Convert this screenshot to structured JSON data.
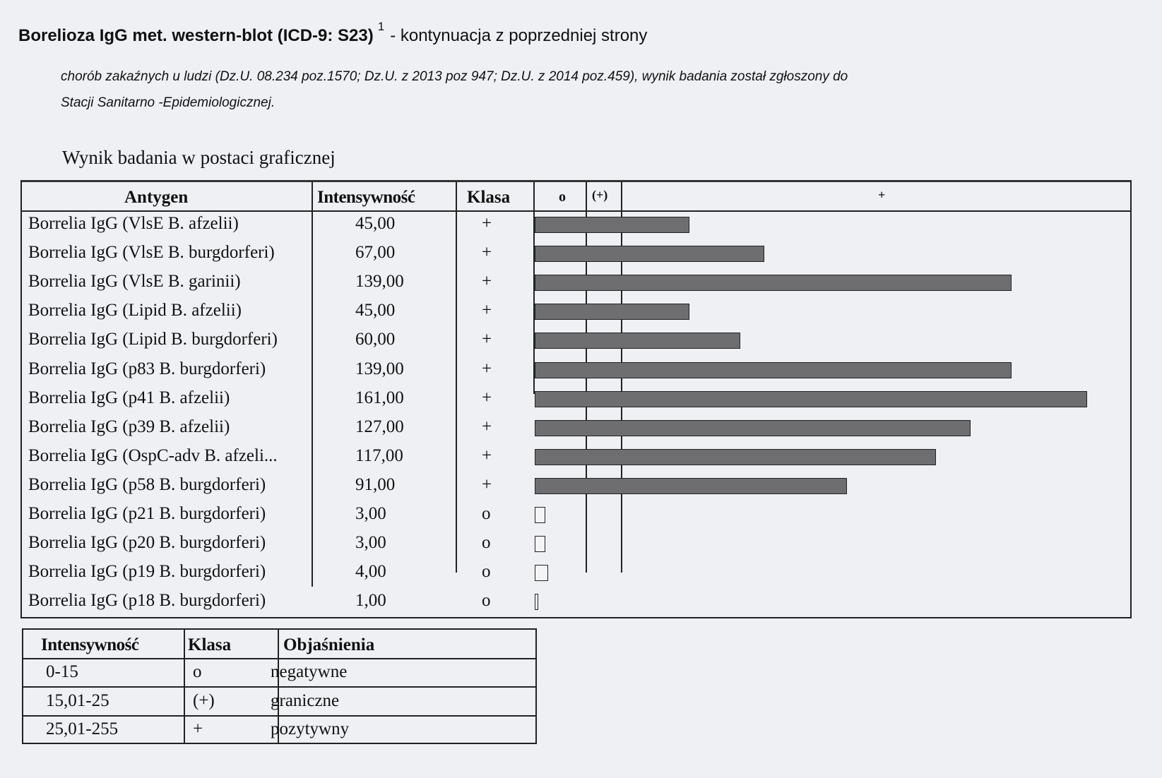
{
  "header": {
    "title_bold": "Borelioza IgG met. western-blot (ICD-9: S23)",
    "footnote_mark": "1",
    "title_rest": "- kontynuacja z poprzedniej strony",
    "note_line1": "chorób zakaźnych u ludzi (Dz.U. 08.234 poz.1570; Dz.U. z 2013 poz 947;  Dz.U. z 2014 poz.459), wynik badania został zgłoszony do",
    "note_line2": "Stacji Sanitarno -Epidemiologicznej.",
    "section_title": "Wynik badania w postaci graficznej"
  },
  "results_table": {
    "columns": [
      "Antygen",
      "Intensywność",
      "Klasa",
      "o",
      "(+)",
      "+"
    ],
    "scale_max": 161,
    "thresholds": [
      15,
      25
    ],
    "bar_color": "#6e6e70",
    "rows": [
      {
        "antigen": "Borrelia IgG (VlsE B. afzelii)",
        "intensity": "45,00",
        "value": 45,
        "class": "+"
      },
      {
        "antigen": "Borrelia IgG (VlsE B. burgdorferi)",
        "intensity": "67,00",
        "value": 67,
        "class": "+"
      },
      {
        "antigen": "Borrelia IgG (VlsE B. garinii)",
        "intensity": "139,00",
        "value": 139,
        "class": "+"
      },
      {
        "antigen": "Borrelia IgG (Lipid B. afzelii)",
        "intensity": "45,00",
        "value": 45,
        "class": "+"
      },
      {
        "antigen": "Borrelia IgG (Lipid B. burgdorferi)",
        "intensity": "60,00",
        "value": 60,
        "class": "+"
      },
      {
        "antigen": "Borrelia IgG (p83 B. burgdorferi)",
        "intensity": "139,00",
        "value": 139,
        "class": "+"
      },
      {
        "antigen": "Borrelia IgG (p41 B. afzelii)",
        "intensity": "161,00",
        "value": 161,
        "class": "+"
      },
      {
        "antigen": "Borrelia IgG (p39 B. afzelii)",
        "intensity": "127,00",
        "value": 127,
        "class": "+"
      },
      {
        "antigen": "Borrelia IgG (OspC-adv B. afzeli...",
        "intensity": "117,00",
        "value": 117,
        "class": "+"
      },
      {
        "antigen": "Borrelia IgG (p58 B. burgdorferi)",
        "intensity": "91,00",
        "value": 91,
        "class": "+"
      },
      {
        "antigen": "Borrelia IgG (p21 B. burgdorferi)",
        "intensity": "3,00",
        "value": 3,
        "class": "o"
      },
      {
        "antigen": "Borrelia IgG (p20 B. burgdorferi)",
        "intensity": "3,00",
        "value": 3,
        "class": "o"
      },
      {
        "antigen": "Borrelia IgG (p19 B. burgdorferi)",
        "intensity": "4,00",
        "value": 4,
        "class": "o"
      },
      {
        "antigen": "Borrelia IgG (p18 B. burgdorferi)",
        "intensity": "1,00",
        "value": 1,
        "class": "o"
      }
    ]
  },
  "legend_table": {
    "columns": [
      "Intensywność",
      "Klasa",
      "Objaśnienia"
    ],
    "rows": [
      {
        "range": "0-15",
        "class": "o",
        "meaning": "negatywne"
      },
      {
        "range": "15,01-25",
        "class": "(+)",
        "meaning": "graniczne"
      },
      {
        "range": "25,01-255",
        "class": "+",
        "meaning": "pozytywny"
      }
    ]
  }
}
